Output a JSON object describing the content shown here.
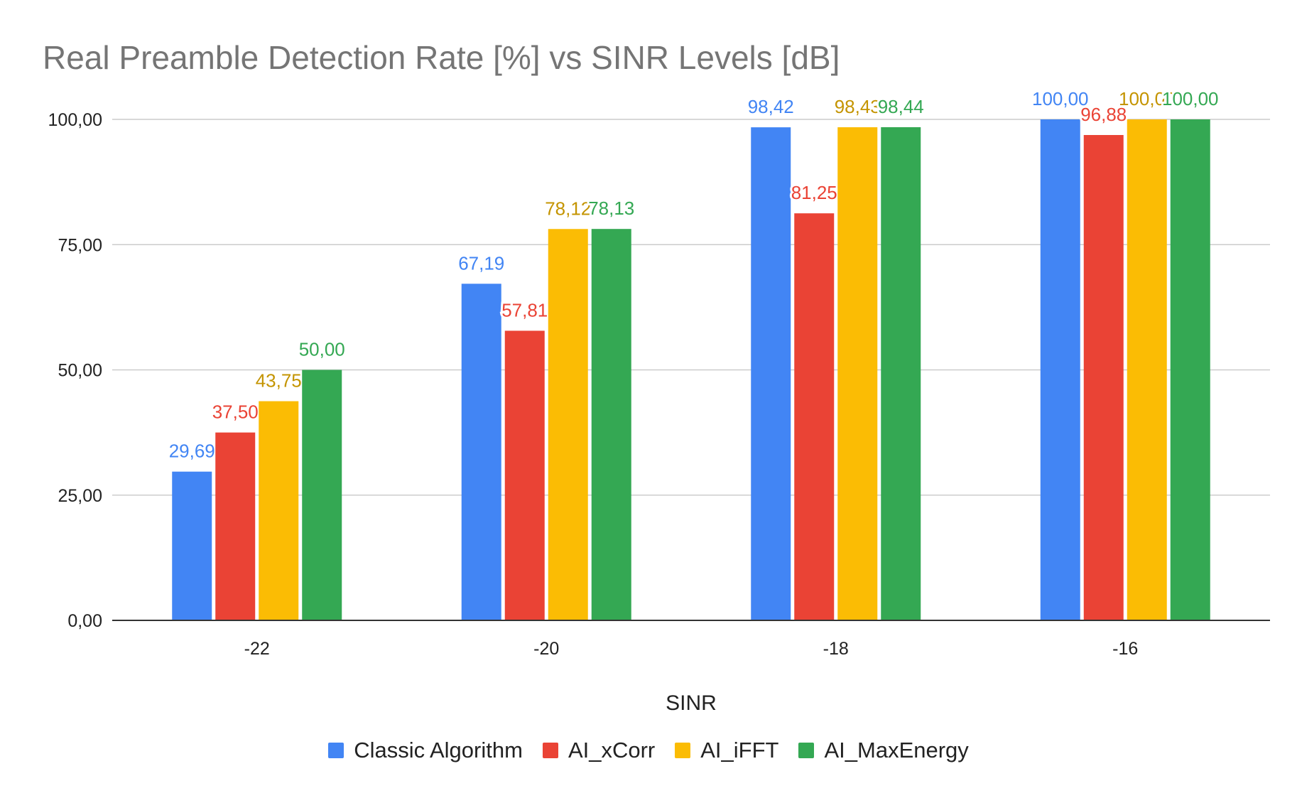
{
  "chart_data": {
    "type": "bar",
    "title": "Real Preamble Detection Rate [%] vs SINR Levels [dB]",
    "xlabel": "SINR",
    "ylabel": "",
    "categories": [
      "-22",
      "-20",
      "-18",
      "-16"
    ],
    "ylim": [
      0,
      100
    ],
    "yticks": [
      "0,00",
      "25,00",
      "50,00",
      "75,00",
      "100,00"
    ],
    "grid": true,
    "legend_position": "bottom",
    "series": [
      {
        "name": "Classic Algorithm",
        "color": "#4285F4",
        "label_color": "#4285F4",
        "values": [
          29.69,
          67.19,
          98.42,
          100.0
        ],
        "labels": [
          "29,69",
          "67,19",
          "98,42",
          "100,00"
        ]
      },
      {
        "name": "AI_xCorr",
        "color": "#EA4335",
        "label_color": "#EA4335",
        "values": [
          37.5,
          57.81,
          81.25,
          96.88
        ],
        "labels": [
          "37,50",
          "57,81",
          "81,25",
          "96,88"
        ]
      },
      {
        "name": "AI_iFFT",
        "color": "#FBBC04",
        "label_color": "#C49400",
        "values": [
          43.75,
          78.12,
          98.43,
          100.0
        ],
        "labels": [
          "43,75",
          "78,12",
          "98,43",
          "100,00"
        ]
      },
      {
        "name": "AI_MaxEnergy",
        "color": "#34A853",
        "label_color": "#34A853",
        "values": [
          50.0,
          78.13,
          98.44,
          100.0
        ],
        "labels": [
          "50,00",
          "78,13",
          "98,44",
          "100,00"
        ]
      }
    ]
  }
}
